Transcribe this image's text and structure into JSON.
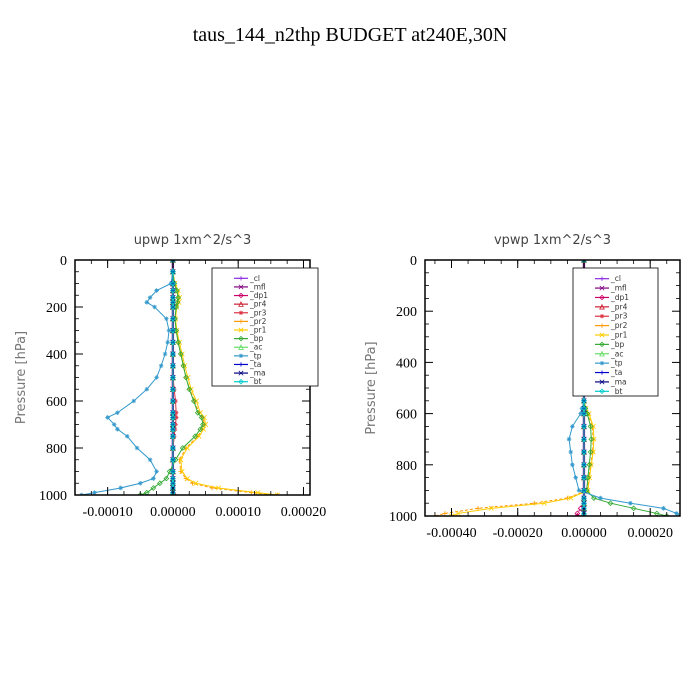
{
  "suptitle": "taus_144_n2thp  BUDGET at240E,30N",
  "chart_data": [
    {
      "type": "line",
      "orientation": "vertical-profile",
      "title": "upwp   1xm^2/s^3",
      "ylabel": "Pressure [hPa]",
      "xlabel": "",
      "xlim": [
        -0.00015,
        0.00021
      ],
      "ylim": [
        1000,
        0
      ],
      "xticks": [
        -0.0001,
        0.0,
        0.0001,
        0.0002
      ],
      "xtick_labels": [
        "-0.00010",
        "0.00000",
        "0.00010",
        "0.00020"
      ],
      "yticks": [
        0,
        200,
        400,
        600,
        800,
        1000
      ],
      "ytick_labels": [
        "0",
        "200",
        "400",
        "600",
        "800",
        "1000"
      ],
      "legend_position": "top-right",
      "pressure": [
        0,
        50,
        100,
        130,
        160,
        180,
        200,
        250,
        300,
        350,
        400,
        450,
        500,
        550,
        600,
        650,
        670,
        700,
        720,
        750,
        800,
        850,
        900,
        930,
        950,
        970,
        990,
        1000
      ],
      "series": [
        {
          "name": "_cl",
          "color": "#8a2be2",
          "values": [
            0,
            0,
            0,
            0,
            0,
            0,
            0,
            0,
            0,
            0,
            0,
            0,
            0,
            0,
            0,
            0,
            0,
            0,
            0,
            0,
            0,
            0,
            0,
            0,
            0,
            0,
            0,
            0
          ]
        },
        {
          "name": "_mfl",
          "color": "#800080",
          "values": [
            0,
            0,
            0,
            0,
            0,
            0,
            0,
            0,
            0,
            0,
            0,
            0,
            0,
            0,
            0,
            0,
            0,
            0,
            0,
            0,
            0,
            0,
            0,
            0,
            0,
            0,
            0,
            0
          ]
        },
        {
          "name": "_dp1",
          "color": "#cc0066",
          "values": [
            0,
            0,
            0,
            0,
            0,
            0,
            0,
            0,
            0,
            0,
            0,
            0,
            0,
            0,
            0,
            0,
            0,
            0,
            0,
            0,
            0,
            0,
            0,
            0,
            0,
            0,
            0,
            2e-06
          ]
        },
        {
          "name": "_pr4",
          "color": "#cc2233",
          "values": [
            0,
            0,
            0,
            0,
            0,
            0,
            0,
            0,
            0,
            0,
            0,
            0,
            0,
            0,
            0,
            0,
            0,
            0,
            0,
            0,
            0,
            0,
            0,
            0,
            0,
            0,
            0,
            0
          ]
        },
        {
          "name": "_pr3",
          "color": "#dd3344",
          "values": [
            0,
            0,
            0,
            0,
            0,
            0,
            0,
            0,
            0,
            0,
            0,
            0,
            0,
            2e-06,
            4e-06,
            5e-06,
            5e-06,
            4e-06,
            3e-06,
            2e-06,
            0,
            0,
            0,
            0,
            0,
            0,
            0,
            0
          ]
        },
        {
          "name": "_pr2",
          "color": "#ff9900",
          "values": [
            0,
            0,
            2e-06,
            6e-06,
            8e-06,
            7e-06,
            5e-06,
            4e-06,
            5e-06,
            8e-06,
            1.2e-05,
            1.6e-05,
            2e-05,
            2.6e-05,
            3.3e-05,
            4e-05,
            4.6e-05,
            4.8e-05,
            4.5e-05,
            3.8e-05,
            2e-05,
            1e-05,
            1.2e-05,
            2e-05,
            3e-05,
            6e-05,
            0.00012,
            0.00016
          ]
        },
        {
          "name": "_pr1",
          "color": "#ffcc00",
          "values": [
            0,
            0,
            3e-06,
            8e-06,
            1e-05,
            9e-06,
            6e-06,
            4e-06,
            6e-06,
            1e-05,
            1.4e-05,
            1.8e-05,
            2.3e-05,
            2.8e-05,
            3.6e-05,
            4.2e-05,
            4.8e-05,
            5e-05,
            4.7e-05,
            4e-05,
            2.2e-05,
            1.2e-05,
            1.4e-05,
            2.2e-05,
            3.5e-05,
            7e-05,
            0.00013,
            0.00016
          ]
        },
        {
          "name": "_bp",
          "color": "#33aa33",
          "values": [
            0,
            0,
            2e-06,
            6e-06,
            8e-06,
            7e-06,
            5e-06,
            3e-06,
            5e-06,
            8e-06,
            1.2e-05,
            1.6e-05,
            2e-05,
            2.5e-05,
            3.2e-05,
            3.8e-05,
            4.4e-05,
            4.6e-05,
            4.2e-05,
            3.4e-05,
            1.5e-05,
            4e-06,
            -5e-06,
            -1e-05,
            -2e-05,
            -3e-05,
            -4e-05,
            -5e-05
          ]
        },
        {
          "name": "_ac",
          "color": "#66dd66",
          "values": [
            0,
            0,
            0,
            0,
            0,
            0,
            0,
            0,
            0,
            0,
            0,
            0,
            0,
            0,
            0,
            0,
            0,
            0,
            0,
            0,
            0,
            0,
            0,
            0,
            0,
            0,
            0,
            0
          ]
        },
        {
          "name": "_tp",
          "color": "#3399cc",
          "values": [
            0,
            0,
            -3e-06,
            -2.5e-05,
            -3.5e-05,
            -4e-05,
            -2.8e-05,
            -1e-05,
            -6e-06,
            -8e-06,
            -1.2e-05,
            -1.8e-05,
            -2.5e-05,
            -4e-05,
            -6e-05,
            -8.5e-05,
            -0.0001,
            -9e-05,
            -8.5e-05,
            -7e-05,
            -5.5e-05,
            -3.5e-05,
            -2.5e-05,
            -3e-05,
            -5e-05,
            -8e-05,
            -0.00012,
            -0.00014
          ]
        },
        {
          "name": "_ta",
          "color": "#0000cc",
          "values": [
            0,
            0,
            0,
            0,
            0,
            0,
            0,
            0,
            0,
            0,
            0,
            0,
            0,
            0,
            0,
            0,
            0,
            0,
            0,
            0,
            0,
            0,
            0,
            0,
            0,
            0,
            0,
            0
          ]
        },
        {
          "name": "_ma",
          "color": "#000080",
          "values": [
            0,
            0,
            0,
            0,
            0,
            0,
            0,
            0,
            0,
            0,
            0,
            0,
            0,
            0,
            0,
            0,
            0,
            0,
            0,
            0,
            0,
            0,
            0,
            0,
            0,
            0,
            0,
            0
          ]
        },
        {
          "name": "_bt",
          "color": "#00cccc",
          "values": [
            0,
            0,
            0,
            0,
            0,
            0,
            0,
            0,
            0,
            0,
            0,
            0,
            0,
            0,
            0,
            0,
            0,
            0,
            0,
            0,
            0,
            0,
            0,
            0,
            0,
            0,
            0,
            0
          ]
        }
      ]
    },
    {
      "type": "line",
      "orientation": "vertical-profile",
      "title": "vpwp   1xm^2/s^3",
      "ylabel": "Pressure [hPa]",
      "xlabel": "",
      "xlim": [
        -0.00048,
        0.00029
      ],
      "ylim": [
        1000,
        0
      ],
      "xticks": [
        -0.0004,
        -0.0002,
        0.0,
        0.0002
      ],
      "xtick_labels": [
        "-0.00040",
        "-0.00020",
        "0.00000",
        "0.00020"
      ],
      "yticks": [
        0,
        200,
        400,
        600,
        800,
        1000
      ],
      "ytick_labels": [
        "0",
        "200",
        "400",
        "600",
        "800",
        "1000"
      ],
      "legend_position": "top-right",
      "pressure": [
        0,
        50,
        100,
        130,
        160,
        180,
        200,
        250,
        300,
        350,
        400,
        450,
        500,
        550,
        580,
        600,
        650,
        700,
        750,
        800,
        850,
        900,
        930,
        950,
        970,
        990,
        1000
      ],
      "series": [
        {
          "name": "_cl",
          "color": "#8a2be2",
          "values": [
            0,
            0,
            0,
            0,
            0,
            0,
            0,
            0,
            0,
            0,
            0,
            0,
            0,
            0,
            0,
            0,
            0,
            0,
            0,
            0,
            0,
            0,
            0,
            0,
            0,
            0,
            0
          ]
        },
        {
          "name": "_mfl",
          "color": "#800080",
          "values": [
            0,
            0,
            0,
            0,
            0,
            0,
            0,
            0,
            0,
            0,
            0,
            0,
            0,
            0,
            0,
            0,
            0,
            0,
            0,
            0,
            0,
            0,
            0,
            0,
            0,
            0,
            0
          ]
        },
        {
          "name": "_dp1",
          "color": "#cc0066",
          "values": [
            0,
            0,
            0,
            0,
            0,
            0,
            0,
            0,
            0,
            0,
            0,
            0,
            0,
            0,
            0,
            0,
            0,
            0,
            0,
            0,
            0,
            0,
            0,
            0,
            -1e-05,
            -2e-05,
            -2e-05
          ]
        },
        {
          "name": "_pr4",
          "color": "#cc2233",
          "values": [
            0,
            0,
            0,
            0,
            0,
            0,
            0,
            0,
            0,
            0,
            0,
            0,
            0,
            0,
            0,
            0,
            0,
            0,
            0,
            0,
            0,
            0,
            0,
            0,
            0,
            0,
            0
          ]
        },
        {
          "name": "_pr3",
          "color": "#dd3344",
          "values": [
            0,
            0,
            0,
            0,
            0,
            0,
            0,
            0,
            0,
            0,
            0,
            0,
            0,
            0,
            0,
            0,
            0,
            0,
            0,
            0,
            0,
            0,
            0,
            0,
            0,
            0,
            0
          ]
        },
        {
          "name": "_pr2",
          "color": "#ff9900",
          "values": [
            0,
            0,
            0,
            4e-06,
            -8e-06,
            -6e-06,
            -4e-06,
            0,
            0,
            0,
            0,
            0,
            0,
            0,
            5e-06,
            1.2e-05,
            2.5e-05,
            2.8e-05,
            2.6e-05,
            2e-05,
            1.5e-05,
            1e-05,
            -5e-05,
            -0.00015,
            -0.00032,
            -0.00042,
            -0.00045
          ]
        },
        {
          "name": "_pr1",
          "color": "#ffcc00",
          "values": [
            0,
            0,
            0,
            5e-06,
            -1e-05,
            -7e-06,
            -5e-06,
            0,
            0,
            0,
            0,
            0,
            0,
            0,
            6e-06,
            1.5e-05,
            2.8e-05,
            3e-05,
            2.8e-05,
            2.2e-05,
            1.7e-05,
            1.2e-05,
            -4e-05,
            -0.00012,
            -0.00028,
            -0.00038,
            -0.0004
          ]
        },
        {
          "name": "_bp",
          "color": "#33aa33",
          "values": [
            0,
            0,
            0,
            3e-06,
            -6e-06,
            -5e-06,
            -3e-06,
            0,
            0,
            0,
            0,
            0,
            0,
            0,
            4e-06,
            1e-05,
            2e-05,
            2.2e-05,
            2e-05,
            1.6e-05,
            1.2e-05,
            8e-06,
            3e-05,
            8e-05,
            0.00015,
            0.00022,
            0.00025
          ]
        },
        {
          "name": "_ac",
          "color": "#66dd66",
          "values": [
            0,
            0,
            0,
            0,
            0,
            0,
            0,
            0,
            0,
            0,
            0,
            0,
            0,
            0,
            0,
            0,
            0,
            0,
            0,
            0,
            0,
            0,
            0,
            0,
            0,
            0,
            0
          ]
        },
        {
          "name": "_tp",
          "color": "#3399cc",
          "values": [
            0,
            0,
            0,
            1.2e-05,
            1e-05,
            8e-06,
            5e-06,
            0,
            0,
            0,
            0,
            0,
            0,
            0,
            -6e-06,
            -1e-05,
            -3.5e-05,
            -4.5e-05,
            -4e-05,
            -3.5e-05,
            -2.5e-05,
            -1.5e-05,
            5e-05,
            0.00014,
            0.00024,
            0.00028,
            0.00029
          ]
        },
        {
          "name": "_ta",
          "color": "#0000cc",
          "values": [
            0,
            0,
            0,
            0,
            0,
            0,
            0,
            0,
            0,
            0,
            0,
            0,
            0,
            0,
            0,
            0,
            0,
            0,
            0,
            0,
            0,
            0,
            0,
            0,
            0,
            0,
            0
          ]
        },
        {
          "name": "_ma",
          "color": "#000080",
          "values": [
            0,
            0,
            0,
            0,
            0,
            0,
            0,
            0,
            0,
            0,
            0,
            0,
            0,
            0,
            0,
            0,
            0,
            0,
            0,
            0,
            0,
            0,
            0,
            0,
            0,
            0,
            0
          ]
        },
        {
          "name": "_bt",
          "color": "#00cccc",
          "values": [
            0,
            0,
            0,
            0,
            0,
            0,
            0,
            0,
            0,
            0,
            0,
            0,
            0,
            0,
            0,
            0,
            0,
            0,
            0,
            0,
            0,
            0,
            0,
            0,
            0,
            0,
            0
          ]
        }
      ]
    }
  ]
}
